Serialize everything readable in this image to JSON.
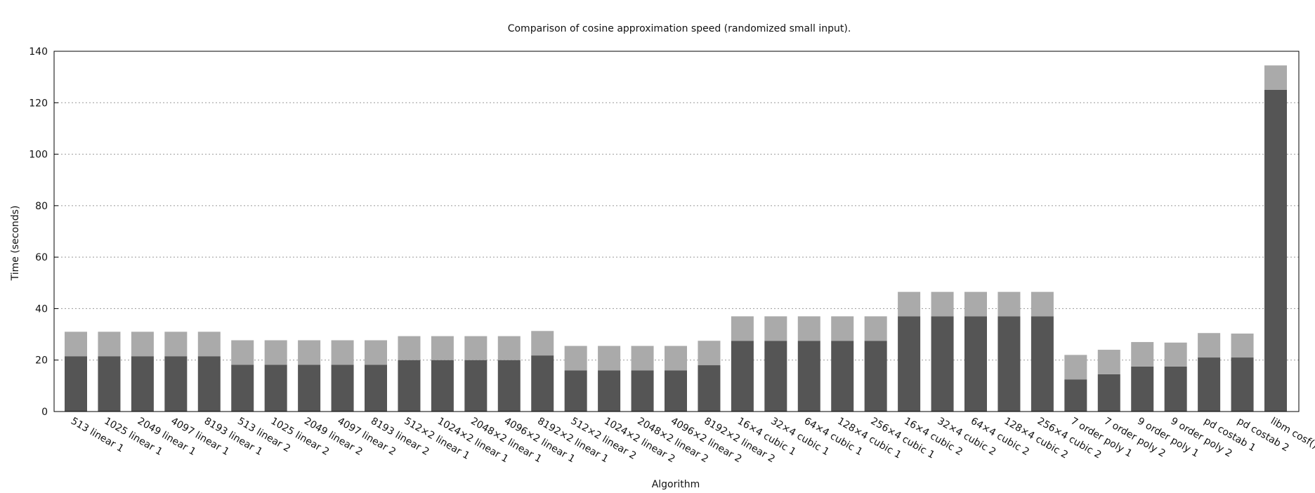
{
  "chart_data": {
    "type": "bar",
    "stacked": true,
    "title": "Comparison of cosine approximation speed (randomized small input).",
    "xlabel": "Algorithm",
    "ylabel": "Time (seconds)",
    "ylim": [
      0,
      140
    ],
    "yticks": [
      "0",
      "20",
      "40",
      "60",
      "80",
      "100",
      "120",
      "140"
    ],
    "grid": "horizontal dotted",
    "categories": [
      "513 linear 1",
      "1025 linear 1",
      "2049 linear 1",
      "4097 linear 1",
      "8193 linear 1",
      "513 linear 2",
      "1025 linear 2",
      "2049 linear 2",
      "4097 linear 2",
      "8193 linear 2",
      "512×2 linear 1",
      "1024×2 linear 1",
      "2048×2 linear 1",
      "4096×2 linear 1",
      "8192×2 linear 1",
      "512×2 linear 2",
      "1024×2 linear 2",
      "2048×2 linear 2",
      "4096×2 linear 2",
      "8192×2 linear 2",
      "16×4 cubic 1",
      "32×4 cubic 1",
      "64×4 cubic 1",
      "128×4 cubic 1",
      "256×4 cubic 1",
      "16×4 cubic 2",
      "32×4 cubic 2",
      "64×4 cubic 2",
      "128×4 cubic 2",
      "256×4 cubic 2",
      "7 order poly 1",
      "7 order poly 2",
      "9 order poly 1",
      "9 order poly 2",
      "pd costab 1",
      "pd costab 2",
      "libm cosf()"
    ],
    "series": [
      {
        "color": "#555555",
        "values": [
          21.5,
          21.5,
          21.5,
          21.5,
          21.5,
          18.2,
          18.2,
          18.2,
          18.2,
          18.2,
          20.0,
          20.0,
          20.0,
          20.0,
          21.8,
          16.0,
          16.0,
          16.0,
          16.0,
          18.0,
          27.5,
          27.5,
          27.5,
          27.5,
          27.5,
          37.0,
          37.0,
          37.0,
          37.0,
          37.0,
          12.5,
          14.5,
          17.5,
          17.5,
          21.0,
          21.0,
          125.0
        ]
      },
      {
        "color": "#aaaaaa",
        "values": [
          9.5,
          9.5,
          9.5,
          9.5,
          9.5,
          9.5,
          9.5,
          9.5,
          9.5,
          9.5,
          9.3,
          9.3,
          9.3,
          9.3,
          9.5,
          9.5,
          9.5,
          9.5,
          9.5,
          9.5,
          9.5,
          9.5,
          9.5,
          9.5,
          9.5,
          9.5,
          9.5,
          9.5,
          9.5,
          9.5,
          9.5,
          9.5,
          9.5,
          9.3,
          9.5,
          9.3,
          9.5
        ]
      }
    ]
  }
}
